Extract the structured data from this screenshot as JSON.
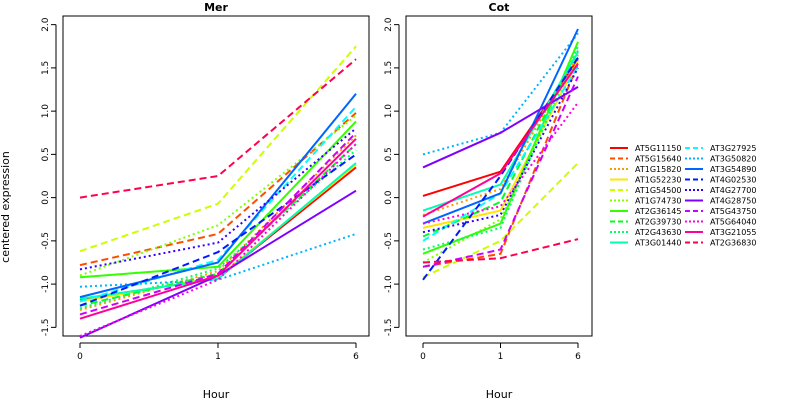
{
  "chart_data": {
    "type": "line",
    "ylabel": "centered expression",
    "ylim": [
      -1.6,
      2.1
    ],
    "yticks": [
      "-1.5",
      "-1.0",
      "-0.5",
      "0.0",
      "0.5",
      "1.0",
      "1.5",
      "2.0"
    ],
    "ytick_values": [
      -1.5,
      -1.0,
      -0.5,
      0.0,
      0.5,
      1.0,
      1.5,
      2.0
    ],
    "x_positions": [
      0,
      1,
      2
    ],
    "xtick_labels": [
      "0",
      "1",
      "6"
    ],
    "legend_placement": "right",
    "series": [
      {
        "name": "AT5G11150",
        "color": "#ff0000",
        "dash": "solid"
      },
      {
        "name": "AT5G15640",
        "color": "#ff4d00",
        "dash": "dashed"
      },
      {
        "name": "AT1G15820",
        "color": "#ff9900",
        "dash": "dotted"
      },
      {
        "name": "AT1G52230",
        "color": "#ffe600",
        "dash": "solid"
      },
      {
        "name": "AT1G54500",
        "color": "#ccff00",
        "dash": "dashed"
      },
      {
        "name": "AT1G74730",
        "color": "#80ff00",
        "dash": "dotted"
      },
      {
        "name": "AT2G36145",
        "color": "#33ff00",
        "dash": "solid"
      },
      {
        "name": "AT2G39730",
        "color": "#00ff19",
        "dash": "dashed"
      },
      {
        "name": "AT2G43630",
        "color": "#00ff66",
        "dash": "dotted"
      },
      {
        "name": "AT3G01440",
        "color": "#00ffb2",
        "dash": "solid"
      },
      {
        "name": "AT3G27925",
        "color": "#00ffff",
        "dash": "dashed"
      },
      {
        "name": "AT3G50820",
        "color": "#00b3ff",
        "dash": "dotted"
      },
      {
        "name": "AT3G54890",
        "color": "#0066ff",
        "dash": "solid"
      },
      {
        "name": "AT4G02530",
        "color": "#001aff",
        "dash": "dashed"
      },
      {
        "name": "AT4G27700",
        "color": "#3300ff",
        "dash": "dotted"
      },
      {
        "name": "AT4G28750",
        "color": "#8000ff",
        "dash": "solid"
      },
      {
        "name": "AT5G43750",
        "color": "#cc00ff",
        "dash": "dashed"
      },
      {
        "name": "AT5G64040",
        "color": "#ff00e6",
        "dash": "dotted"
      },
      {
        "name": "AT3G21055",
        "color": "#ff0099",
        "dash": "solid"
      },
      {
        "name": "AT2G36830",
        "color": "#ff004d",
        "dash": "dashed"
      }
    ],
    "panels": [
      {
        "title": "Mer",
        "xlabel": "Hour",
        "values": [
          [
            -1.18,
            -0.93,
            0.35
          ],
          [
            -0.78,
            -0.42,
            0.98
          ],
          [
            -1.3,
            -0.85,
            0.72
          ],
          [
            -1.2,
            -0.92,
            0.38
          ],
          [
            -0.62,
            -0.07,
            1.75
          ],
          [
            -0.9,
            -0.32,
            0.95
          ],
          [
            -0.92,
            -0.8,
            0.88
          ],
          [
            -1.25,
            -0.88,
            0.62
          ],
          [
            -1.28,
            -0.82,
            0.55
          ],
          [
            -1.17,
            -0.94,
            0.4
          ],
          [
            -1.2,
            -0.72,
            1.05
          ],
          [
            -1.03,
            -0.95,
            -0.42
          ],
          [
            -1.15,
            -0.75,
            1.2
          ],
          [
            -1.25,
            -0.63,
            0.5
          ],
          [
            -0.83,
            -0.52,
            0.8
          ],
          [
            -1.62,
            -0.9,
            0.08
          ],
          [
            -1.35,
            -0.88,
            0.75
          ],
          [
            -1.6,
            -0.95,
            0.62
          ],
          [
            -1.4,
            -0.9,
            0.68
          ],
          [
            0.0,
            0.25,
            1.6
          ]
        ]
      },
      {
        "title": "Cot",
        "xlabel": "Hour",
        "values": [
          [
            0.02,
            0.3,
            1.6
          ],
          [
            -0.8,
            -0.65,
            1.55
          ],
          [
            -0.2,
            0.1,
            1.65
          ],
          [
            -0.35,
            -0.15,
            1.58
          ],
          [
            -0.92,
            -0.5,
            0.4
          ],
          [
            -0.75,
            -0.25,
            1.65
          ],
          [
            -0.65,
            -0.3,
            1.8
          ],
          [
            -0.45,
            -0.05,
            1.7
          ],
          [
            -0.6,
            -0.35,
            1.75
          ],
          [
            -0.15,
            0.15,
            1.68
          ],
          [
            -0.5,
            0.05,
            1.52
          ],
          [
            0.5,
            0.75,
            1.9
          ],
          [
            -0.3,
            0.05,
            1.95
          ],
          [
            -0.95,
            0.25,
            1.62
          ],
          [
            -0.4,
            -0.2,
            1.5
          ],
          [
            0.35,
            0.75,
            1.28
          ],
          [
            -0.8,
            -0.6,
            1.4
          ],
          [
            -0.3,
            -0.1,
            1.1
          ],
          [
            -0.22,
            0.28,
            1.55
          ],
          [
            -0.75,
            -0.7,
            -0.48
          ]
        ]
      }
    ]
  }
}
